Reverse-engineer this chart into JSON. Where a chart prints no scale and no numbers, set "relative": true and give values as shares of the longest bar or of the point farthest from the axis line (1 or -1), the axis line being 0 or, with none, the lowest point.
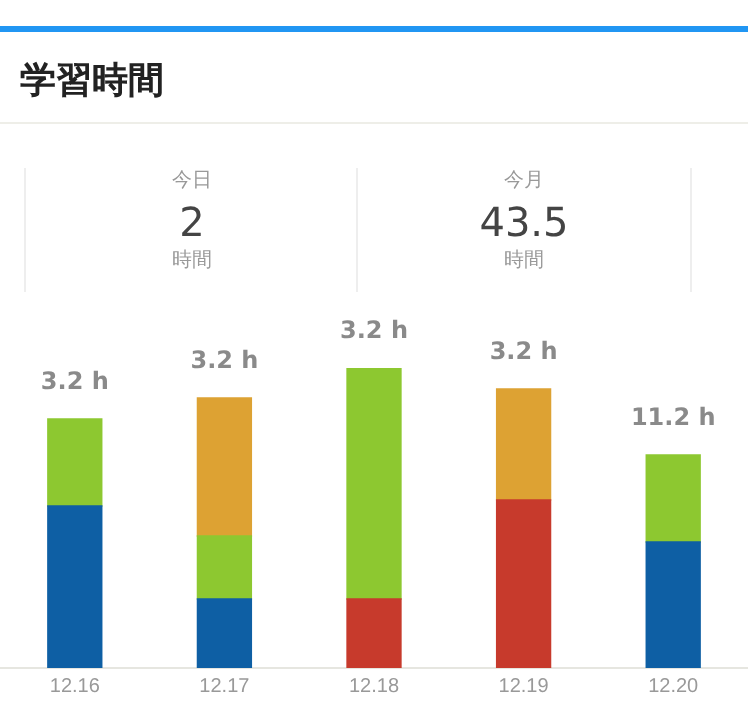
{
  "chart_data": [
    {
      "type": "other",
      "title": "学習時間",
      "annotations": [
        "今日",
        "2",
        "時間",
        "今月",
        "43.5",
        "時間"
      ]
    },
    {
      "type": "bar",
      "stacked": true,
      "relative": true,
      "categories": [
        "12.16",
        "12.17",
        "12.18",
        "12.19",
        "12.20"
      ],
      "series": [
        {
          "color": "#0e5fa4",
          "values": [
            0.54,
            0.23,
            null,
            null,
            0.42
          ]
        },
        {
          "color": "#c73a2c",
          "values": [
            null,
            null,
            0.23,
            0.56,
            null
          ]
        },
        {
          "color": "#8dc830",
          "values": [
            0.29,
            0.21,
            0.77,
            null,
            0.29
          ]
        },
        {
          "color": "#dda233",
          "values": [
            null,
            0.46,
            null,
            0.37,
            null
          ]
        }
      ],
      "annotations": [
        {
          "text": "3.2 h",
          "x": "12.16",
          "y": 0.83
        },
        {
          "text": "3.2 h",
          "x": "12.17",
          "y": 0.9
        },
        {
          "text": "3.2 h",
          "x": "12.18",
          "y": 1
        },
        {
          "text": "3.2 h",
          "x": "12.19",
          "y": 0.93
        },
        {
          "text": "11.2 h",
          "x": "12.20",
          "y": 0.71
        }
      ],
      "grid": false,
      "legend": false
    }
  ]
}
